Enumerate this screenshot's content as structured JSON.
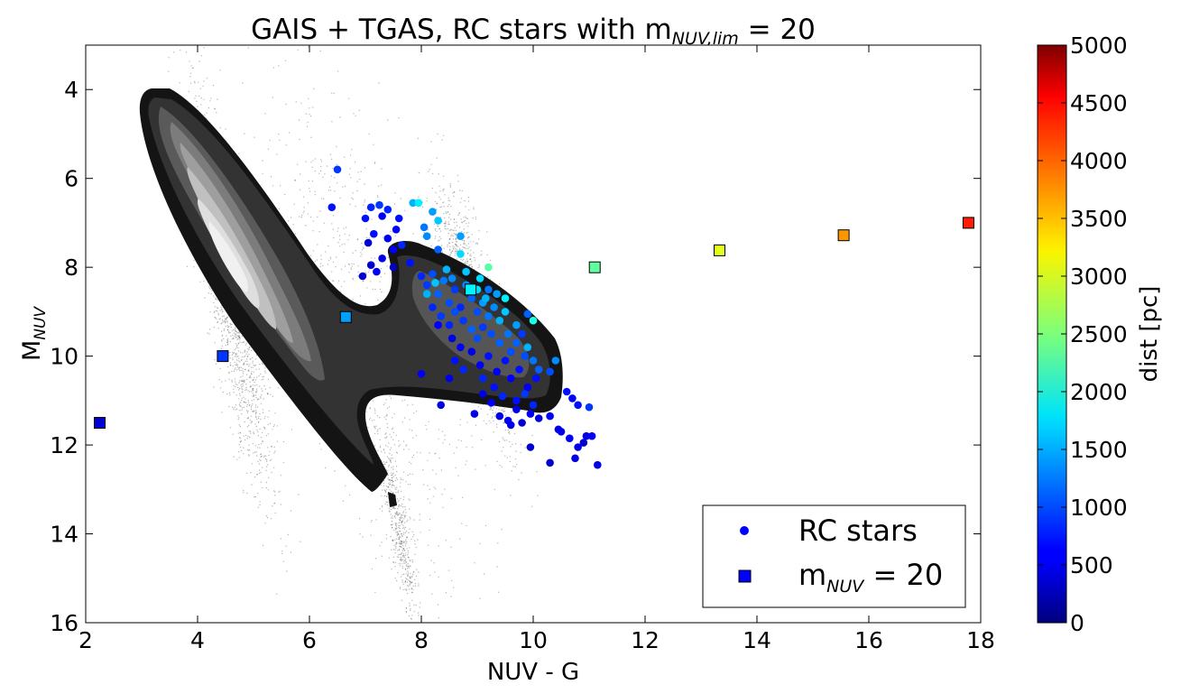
{
  "chart_data": {
    "type": "scatter",
    "title": {
      "prefix": "GAIS + TGAS, RC stars with m",
      "subscript": "NUV,lim",
      "suffix": " = 20"
    },
    "xlabel": "NUV - G",
    "ylabel": {
      "main": "M",
      "subscript": "NUV"
    },
    "xlim": [
      2,
      18
    ],
    "ylim": [
      16,
      3
    ],
    "y_inverted": true,
    "grid": false,
    "xticks": [
      2,
      4,
      6,
      8,
      10,
      12,
      14,
      16,
      18
    ],
    "yticks": [
      4,
      6,
      8,
      10,
      12,
      14,
      16
    ],
    "background": {
      "description_type": "density",
      "colormap": "greys",
      "point_color": "#000000"
    },
    "colorbar": {
      "label": "dist [pc]",
      "range": [
        0,
        5000
      ],
      "ticks": [
        0,
        500,
        1000,
        1500,
        2000,
        2500,
        3000,
        3500,
        4000,
        4500,
        5000
      ],
      "colormap": "jet"
    },
    "legend": {
      "position": "lower-right",
      "entries": [
        {
          "marker": "circle",
          "color": "#0000ff",
          "label": "RC stars"
        },
        {
          "marker": "square",
          "color": "#0000ff",
          "label_main": "m",
          "label_sub": "NUV",
          "label_suffix": " = 20"
        }
      ]
    },
    "series": [
      {
        "name": "RC stars",
        "marker": "circle",
        "points": [
          {
            "x": 6.5,
            "y": 5.8,
            "d": 900
          },
          {
            "x": 6.4,
            "y": 6.65,
            "d": 700
          },
          {
            "x": 7.1,
            "y": 6.65,
            "d": 800
          },
          {
            "x": 7.25,
            "y": 6.6,
            "d": 900
          },
          {
            "x": 7.4,
            "y": 6.7,
            "d": 800
          },
          {
            "x": 7.0,
            "y": 6.9,
            "d": 700
          },
          {
            "x": 7.3,
            "y": 6.85,
            "d": 600
          },
          {
            "x": 7.6,
            "y": 6.9,
            "d": 700
          },
          {
            "x": 7.85,
            "y": 6.55,
            "d": 1500
          },
          {
            "x": 7.95,
            "y": 6.55,
            "d": 1800
          },
          {
            "x": 8.2,
            "y": 6.75,
            "d": 1400
          },
          {
            "x": 8.3,
            "y": 6.95,
            "d": 1600
          },
          {
            "x": 7.15,
            "y": 7.25,
            "d": 700
          },
          {
            "x": 7.55,
            "y": 7.15,
            "d": 600
          },
          {
            "x": 8.05,
            "y": 7.1,
            "d": 1200
          },
          {
            "x": 7.05,
            "y": 7.45,
            "d": 400
          },
          {
            "x": 7.4,
            "y": 7.35,
            "d": 500
          },
          {
            "x": 7.65,
            "y": 7.5,
            "d": 800
          },
          {
            "x": 8.1,
            "y": 7.3,
            "d": 1300
          },
          {
            "x": 8.3,
            "y": 7.6,
            "d": 1100
          },
          {
            "x": 8.7,
            "y": 7.7,
            "d": 1700
          },
          {
            "x": 8.7,
            "y": 7.3,
            "d": 1400
          },
          {
            "x": 7.3,
            "y": 7.8,
            "d": 500
          },
          {
            "x": 7.5,
            "y": 7.6,
            "d": 600
          },
          {
            "x": 7.8,
            "y": 7.9,
            "d": 700
          },
          {
            "x": 7.1,
            "y": 7.95,
            "d": 400
          },
          {
            "x": 7.5,
            "y": 8.0,
            "d": 300
          },
          {
            "x": 6.95,
            "y": 8.2,
            "d": 400
          },
          {
            "x": 7.2,
            "y": 8.1,
            "d": 600
          },
          {
            "x": 9.2,
            "y": 8.0,
            "d": 2300
          },
          {
            "x": 9.05,
            "y": 8.25,
            "d": 1700
          },
          {
            "x": 9.5,
            "y": 8.7,
            "d": 1800
          },
          {
            "x": 9.2,
            "y": 8.5,
            "d": 1200
          },
          {
            "x": 9.9,
            "y": 9.05,
            "d": 1100
          },
          {
            "x": 10.0,
            "y": 9.2,
            "d": 2000
          },
          {
            "x": 9.8,
            "y": 9.5,
            "d": 900
          },
          {
            "x": 8.0,
            "y": 8.2,
            "d": 800
          },
          {
            "x": 8.1,
            "y": 8.4,
            "d": 900
          },
          {
            "x": 8.2,
            "y": 8.15,
            "d": 1000
          },
          {
            "x": 8.3,
            "y": 8.6,
            "d": 1100
          },
          {
            "x": 8.4,
            "y": 8.3,
            "d": 1200
          },
          {
            "x": 8.5,
            "y": 8.8,
            "d": 1000
          },
          {
            "x": 8.6,
            "y": 8.5,
            "d": 900
          },
          {
            "x": 8.7,
            "y": 8.9,
            "d": 800
          },
          {
            "x": 8.8,
            "y": 8.4,
            "d": 1300
          },
          {
            "x": 8.9,
            "y": 8.7,
            "d": 1100
          },
          {
            "x": 9.0,
            "y": 9.0,
            "d": 1000
          },
          {
            "x": 9.1,
            "y": 8.8,
            "d": 1400
          },
          {
            "x": 9.2,
            "y": 9.1,
            "d": 1200
          },
          {
            "x": 9.3,
            "y": 8.9,
            "d": 1300
          },
          {
            "x": 9.4,
            "y": 9.2,
            "d": 1500
          },
          {
            "x": 8.2,
            "y": 8.9,
            "d": 800
          },
          {
            "x": 8.35,
            "y": 9.1,
            "d": 900
          },
          {
            "x": 8.5,
            "y": 9.3,
            "d": 800
          },
          {
            "x": 8.6,
            "y": 9.0,
            "d": 1000
          },
          {
            "x": 8.75,
            "y": 9.2,
            "d": 900
          },
          {
            "x": 8.9,
            "y": 9.4,
            "d": 1100
          },
          {
            "x": 9.0,
            "y": 9.6,
            "d": 1000
          },
          {
            "x": 9.1,
            "y": 9.35,
            "d": 900
          },
          {
            "x": 9.25,
            "y": 9.5,
            "d": 1000
          },
          {
            "x": 9.4,
            "y": 9.7,
            "d": 1100
          },
          {
            "x": 9.55,
            "y": 9.5,
            "d": 1200
          },
          {
            "x": 9.6,
            "y": 9.9,
            "d": 1000
          },
          {
            "x": 9.7,
            "y": 9.7,
            "d": 1100
          },
          {
            "x": 9.85,
            "y": 10.0,
            "d": 1000
          },
          {
            "x": 10.0,
            "y": 10.1,
            "d": 1200
          },
          {
            "x": 10.1,
            "y": 10.3,
            "d": 1100
          },
          {
            "x": 10.4,
            "y": 10.1,
            "d": 1300
          },
          {
            "x": 10.3,
            "y": 10.35,
            "d": 1000
          },
          {
            "x": 8.1,
            "y": 8.6,
            "d": 1500
          },
          {
            "x": 8.25,
            "y": 8.35,
            "d": 1600
          },
          {
            "x": 8.45,
            "y": 8.05,
            "d": 1500
          },
          {
            "x": 8.55,
            "y": 8.25,
            "d": 1300
          },
          {
            "x": 8.8,
            "y": 8.1,
            "d": 1600
          },
          {
            "x": 9.0,
            "y": 8.5,
            "d": 1700
          },
          {
            "x": 9.15,
            "y": 8.7,
            "d": 1500
          },
          {
            "x": 9.35,
            "y": 8.6,
            "d": 1400
          },
          {
            "x": 9.5,
            "y": 9.0,
            "d": 1600
          },
          {
            "x": 9.7,
            "y": 9.3,
            "d": 1400
          },
          {
            "x": 9.9,
            "y": 9.8,
            "d": 1500
          },
          {
            "x": 8.3,
            "y": 9.3,
            "d": 600
          },
          {
            "x": 8.55,
            "y": 9.6,
            "d": 500
          },
          {
            "x": 8.7,
            "y": 9.8,
            "d": 600
          },
          {
            "x": 8.9,
            "y": 9.9,
            "d": 500
          },
          {
            "x": 9.05,
            "y": 10.2,
            "d": 600
          },
          {
            "x": 9.2,
            "y": 10.0,
            "d": 700
          },
          {
            "x": 9.35,
            "y": 10.35,
            "d": 600
          },
          {
            "x": 9.5,
            "y": 10.1,
            "d": 700
          },
          {
            "x": 9.6,
            "y": 10.5,
            "d": 600
          },
          {
            "x": 9.75,
            "y": 10.3,
            "d": 700
          },
          {
            "x": 9.9,
            "y": 10.7,
            "d": 600
          },
          {
            "x": 10.05,
            "y": 10.5,
            "d": 700
          },
          {
            "x": 8.6,
            "y": 10.1,
            "d": 700
          },
          {
            "x": 8.75,
            "y": 10.3,
            "d": 800
          },
          {
            "x": 9.1,
            "y": 10.5,
            "d": 800
          },
          {
            "x": 9.3,
            "y": 10.7,
            "d": 700
          },
          {
            "x": 9.45,
            "y": 10.9,
            "d": 800
          },
          {
            "x": 9.7,
            "y": 11.0,
            "d": 700
          },
          {
            "x": 9.85,
            "y": 10.85,
            "d": 900
          },
          {
            "x": 10.0,
            "y": 11.1,
            "d": 800
          },
          {
            "x": 8.5,
            "y": 10.5,
            "d": 500
          },
          {
            "x": 9.1,
            "y": 10.85,
            "d": 500
          },
          {
            "x": 9.25,
            "y": 11.05,
            "d": 600
          },
          {
            "x": 9.4,
            "y": 11.35,
            "d": 500
          },
          {
            "x": 9.55,
            "y": 11.45,
            "d": 600
          },
          {
            "x": 9.7,
            "y": 11.2,
            "d": 500
          },
          {
            "x": 9.8,
            "y": 11.5,
            "d": 400
          },
          {
            "x": 9.95,
            "y": 11.3,
            "d": 600
          },
          {
            "x": 10.1,
            "y": 11.4,
            "d": 500
          },
          {
            "x": 8.35,
            "y": 11.1,
            "d": 500
          },
          {
            "x": 8.0,
            "y": 10.4,
            "d": 600
          },
          {
            "x": 10.6,
            "y": 10.8,
            "d": 700
          },
          {
            "x": 10.5,
            "y": 11.7,
            "d": 500
          },
          {
            "x": 10.65,
            "y": 11.85,
            "d": 600
          },
          {
            "x": 10.8,
            "y": 12.05,
            "d": 500
          },
          {
            "x": 10.9,
            "y": 11.95,
            "d": 400
          },
          {
            "x": 10.95,
            "y": 11.8,
            "d": 500
          },
          {
            "x": 11.05,
            "y": 11.8,
            "d": 600
          },
          {
            "x": 10.75,
            "y": 12.3,
            "d": 500
          },
          {
            "x": 10.3,
            "y": 12.4,
            "d": 400
          },
          {
            "x": 9.95,
            "y": 12.05,
            "d": 400
          },
          {
            "x": 10.45,
            "y": 11.65,
            "d": 500
          },
          {
            "x": 10.8,
            "y": 11.1,
            "d": 700
          },
          {
            "x": 11.0,
            "y": 11.15,
            "d": 900
          },
          {
            "x": 11.15,
            "y": 12.45,
            "d": 500
          },
          {
            "x": 10.7,
            "y": 10.95,
            "d": 600
          },
          {
            "x": 10.3,
            "y": 11.35,
            "d": 600
          },
          {
            "x": 8.95,
            "y": 11.3,
            "d": 500
          },
          {
            "x": 9.6,
            "y": 11.55,
            "d": 500
          }
        ]
      },
      {
        "name": "m_NUV = 20",
        "marker": "square",
        "points": [
          {
            "x": 2.25,
            "y": 11.5,
            "d": 420
          },
          {
            "x": 4.45,
            "y": 10.0,
            "d": 880
          },
          {
            "x": 6.65,
            "y": 9.12,
            "d": 1400
          },
          {
            "x": 8.88,
            "y": 8.5,
            "d": 1830
          },
          {
            "x": 11.1,
            "y": 8.0,
            "d": 2350
          },
          {
            "x": 13.33,
            "y": 7.62,
            "d": 2990
          },
          {
            "x": 15.55,
            "y": 7.28,
            "d": 3640
          },
          {
            "x": 17.78,
            "y": 7.0,
            "d": 4240
          }
        ]
      }
    ]
  }
}
